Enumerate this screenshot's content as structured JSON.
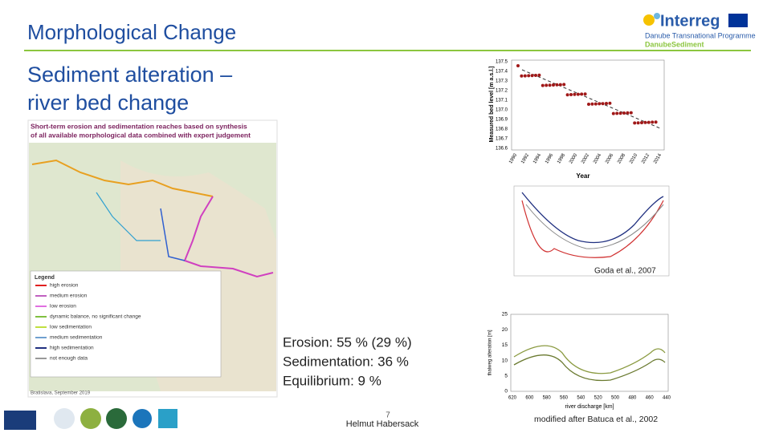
{
  "header": {
    "title": "Morphological Change",
    "logo": {
      "name": "Interreg",
      "programme": "Danube Transnational Programme",
      "project": "DanubeSediment"
    }
  },
  "slide": {
    "subtitle": [
      "Sediment alteration –",
      "river bed change"
    ],
    "map": {
      "title": [
        "Short-term erosion and sedimentation reaches based on synthesis",
        "of all available morphological data combined with expert judgement"
      ],
      "legend_title": "Legend",
      "legend": [
        "high erosion",
        "medium erosion",
        "low erosion",
        "dynamic balance, no significant change",
        "low sedimentation",
        "medium sedimentation",
        "high sedimentation",
        "not enough data"
      ],
      "credit": "Bratislava, September 2019"
    },
    "stats": [
      "Erosion: 55 % (29 %)",
      "Sedimentation: 36 %",
      "Equilibrium: 9 %"
    ],
    "figures": [
      {
        "y_label": "Measured bed level [m a.s.l.]",
        "x_label": "Year",
        "yticks": [
          "137.5",
          "137.4",
          "137.3",
          "137.2",
          "137.1",
          "137.0",
          "136.9",
          "136.8",
          "136.7",
          "136.6"
        ],
        "xticks": [
          "1990",
          "1992",
          "1994",
          "1996",
          "1998",
          "2000",
          "2002",
          "2004",
          "2006",
          "2008",
          "2010",
          "2012",
          "2014"
        ]
      },
      {
        "caption": "Goda et al., 2007"
      },
      {
        "y_label": "thalweg alteration [m]",
        "x_label": "river discharge [km]",
        "yticks": [
          "0",
          "5",
          "10",
          "15",
          "20",
          "25"
        ],
        "xticks": [
          "620",
          "600",
          "580",
          "560",
          "540",
          "520",
          "500",
          "480",
          "460",
          "440"
        ],
        "caption": "modified after Batuca et al., 2002"
      }
    ]
  },
  "footer": {
    "page": "7",
    "author": "Helmut Habersack"
  }
}
